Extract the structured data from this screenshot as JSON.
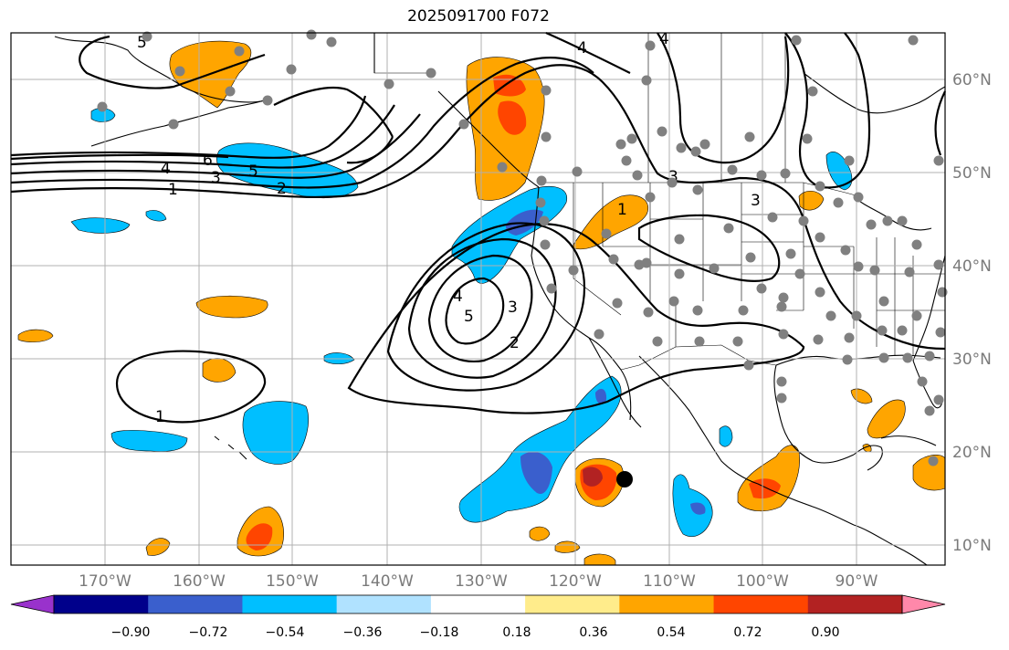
{
  "title": "2025091700 F072",
  "lon_labels": [
    "170°W",
    "160°W",
    "150°W",
    "140°W",
    "130°W",
    "120°W",
    "110°W",
    "100°W",
    "90°W"
  ],
  "lat_labels": [
    "60°N",
    "50°N",
    "40°N",
    "30°N",
    "20°N",
    "10°N"
  ],
  "colorbar": {
    "colors": [
      "#9932cc",
      "#00008b",
      "#3a5fcd",
      "#00bfff",
      "#b0e2ff",
      "#ffffff",
      "#ffec8b",
      "#ffa500",
      "#ff4500",
      "#b22222",
      "#ff88aa"
    ],
    "tick_labels": [
      "−0.90",
      "−0.72",
      "−0.54",
      "−0.36",
      "−0.18",
      "0.18",
      "0.36",
      "0.54",
      "0.72",
      "0.90"
    ]
  },
  "contour_labels": [
    "5",
    "4",
    "6",
    "3",
    "5",
    "1",
    "2",
    "4",
    "3",
    "4",
    "3",
    "5",
    "3",
    "4",
    "2",
    "1",
    "1"
  ],
  "colors": {
    "orange": "#ffa500",
    "red_orange": "#ff4500",
    "dark_red": "#b22222",
    "sky_blue": "#00bfff",
    "royal_blue": "#3a5fcd",
    "station_dot": "#808080",
    "grid": "#b0b0b0"
  },
  "icons": {
    "marker": "black-dot-marker"
  }
}
